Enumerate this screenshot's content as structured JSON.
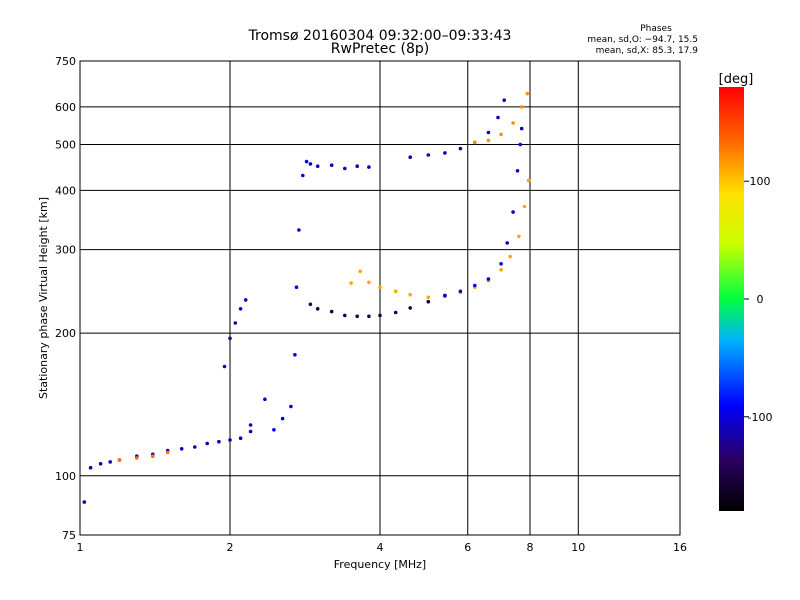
{
  "chart_data": {
    "type": "scatter",
    "title": "Tromsø 20160304 09:32:00–09:33:43",
    "subtitle": "RwPretec (8p)",
    "xlabel": "Frequency [MHz]",
    "ylabel": "Stationary phase Virtual Height [km]",
    "x_scale": "log",
    "y_scale": "log",
    "xlim": [
      1,
      16
    ],
    "ylim": [
      75,
      750
    ],
    "x_ticks": [
      1,
      2,
      4,
      6,
      8,
      10,
      16
    ],
    "y_ticks": [
      75,
      100,
      200,
      300,
      400,
      500,
      600,
      750
    ],
    "grid": true,
    "phase_stats": {
      "heading": "Phases",
      "o_line": "mean, sd,O: −94.7, 15.5",
      "x_line": "mean, sd,X:  85.3, 17.9"
    },
    "colorbar": {
      "label": "[deg]",
      "ticks": [
        100,
        0,
        -100
      ],
      "range": [
        -180,
        180
      ]
    },
    "traces": [
      {
        "phase": -115,
        "points": [
          [
            1.02,
            88
          ],
          [
            1.05,
            104
          ],
          [
            1.1,
            106
          ],
          [
            1.15,
            107
          ],
          [
            1.2,
            108
          ],
          [
            1.3,
            110
          ],
          [
            1.4,
            111
          ],
          [
            1.5,
            113
          ],
          [
            1.6,
            114
          ],
          [
            1.7,
            115
          ],
          [
            1.8,
            117
          ],
          [
            1.9,
            118
          ],
          [
            2.0,
            119
          ],
          [
            2.1,
            120
          ],
          [
            2.2,
            124
          ]
        ]
      },
      {
        "phase": 130,
        "points": [
          [
            1.2,
            108
          ],
          [
            1.3,
            109
          ],
          [
            1.4,
            110
          ],
          [
            1.5,
            112
          ]
        ]
      },
      {
        "phase": -100,
        "points": [
          [
            2.2,
            128
          ],
          [
            2.35,
            145
          ],
          [
            2.45,
            125
          ],
          [
            2.55,
            132
          ],
          [
            2.65,
            140
          ],
          [
            2.7,
            180
          ],
          [
            2.72,
            250
          ],
          [
            2.75,
            330
          ],
          [
            2.8,
            430
          ],
          [
            2.85,
            460
          ],
          [
            2.9,
            455
          ]
        ]
      },
      {
        "phase": -115,
        "points": [
          [
            1.95,
            170
          ],
          [
            2.0,
            195
          ],
          [
            2.05,
            210
          ],
          [
            2.1,
            225
          ],
          [
            2.15,
            235
          ]
        ]
      },
      {
        "phase": -110,
        "points": [
          [
            3.0,
            450
          ],
          [
            3.2,
            452
          ],
          [
            3.4,
            445
          ],
          [
            3.6,
            450
          ],
          [
            3.8,
            448
          ]
        ]
      },
      {
        "phase": -150,
        "points": [
          [
            2.9,
            230
          ],
          [
            3.0,
            225
          ],
          [
            3.2,
            222
          ],
          [
            3.4,
            218
          ],
          [
            3.6,
            217
          ],
          [
            3.8,
            217
          ],
          [
            4.0,
            218
          ],
          [
            4.3,
            221
          ],
          [
            4.6,
            226
          ],
          [
            5.0,
            233
          ],
          [
            5.4,
            240
          ]
        ]
      },
      {
        "phase": 110,
        "points": [
          [
            3.5,
            255
          ],
          [
            3.65,
            270
          ],
          [
            3.8,
            256
          ],
          [
            4.0,
            250
          ],
          [
            4.3,
            245
          ],
          [
            4.6,
            241
          ],
          [
            5.0,
            238
          ],
          [
            5.4,
            239
          ],
          [
            5.8,
            244
          ],
          [
            6.2,
            250
          ],
          [
            6.6,
            258
          ],
          [
            7.0,
            272
          ],
          [
            7.3,
            290
          ],
          [
            7.6,
            320
          ],
          [
            7.8,
            370
          ],
          [
            7.95,
            420
          ]
        ]
      },
      {
        "phase": -105,
        "points": [
          [
            5.4,
            240
          ],
          [
            5.8,
            245
          ],
          [
            6.2,
            252
          ],
          [
            6.6,
            260
          ],
          [
            7.0,
            280
          ],
          [
            7.2,
            310
          ],
          [
            7.4,
            360
          ],
          [
            7.55,
            440
          ],
          [
            7.65,
            500
          ],
          [
            7.7,
            540
          ]
        ]
      },
      {
        "phase": -110,
        "points": [
          [
            4.6,
            470
          ],
          [
            5.0,
            475
          ],
          [
            5.4,
            480
          ],
          [
            5.8,
            490
          ],
          [
            6.2,
            505
          ],
          [
            6.6,
            530
          ],
          [
            6.9,
            570
          ],
          [
            7.1,
            620
          ]
        ]
      },
      {
        "phase": 120,
        "points": [
          [
            6.2,
            505
          ],
          [
            6.6,
            510
          ],
          [
            7.0,
            525
          ],
          [
            7.4,
            555
          ],
          [
            7.7,
            600
          ],
          [
            7.9,
            640
          ]
        ]
      }
    ]
  }
}
